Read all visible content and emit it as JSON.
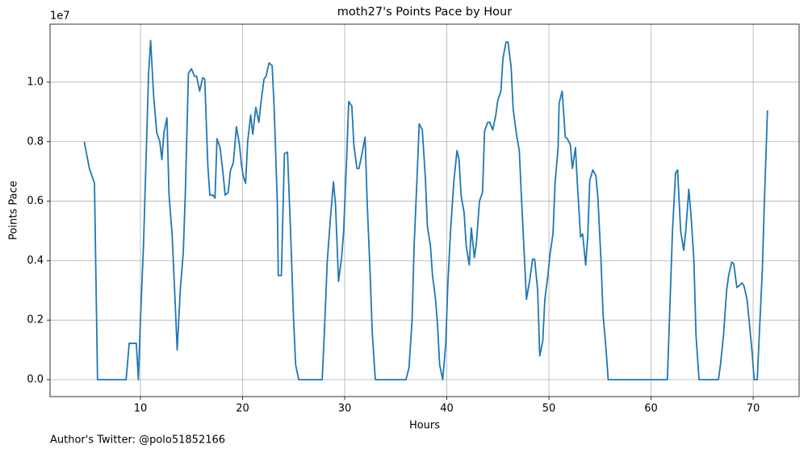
{
  "chart_data": {
    "type": "line",
    "title": "moth27's Points Pace by Hour",
    "xlabel": "Hours",
    "ylabel": "Points Pace",
    "y_offset_label": "1e7",
    "annotation": "Author's Twitter: @polo51852166",
    "grid": true,
    "xlim": [
      1.15,
      74.5
    ],
    "ylim": [
      -570000,
      11950000
    ],
    "xticks": [
      10,
      20,
      30,
      40,
      50,
      60,
      70
    ],
    "yticks": [
      {
        "value": 0,
        "label": "0.0"
      },
      {
        "value": 2000000,
        "label": "0.2"
      },
      {
        "value": 4000000,
        "label": "0.4"
      },
      {
        "value": 6000000,
        "label": "0.6"
      },
      {
        "value": 8000000,
        "label": "0.8"
      },
      {
        "value": 10000000,
        "label": "1.0"
      }
    ],
    "series": [
      {
        "color": "#1f77b4",
        "x": [
          4.5,
          5.0,
          5.5,
          5.8,
          8.6,
          8.9,
          9.6,
          9.8,
          10.0,
          10.3,
          10.8,
          11.0,
          11.3,
          11.6,
          11.9,
          12.1,
          12.3,
          12.6,
          12.8,
          13.1,
          13.4,
          13.6,
          13.9,
          14.2,
          14.4,
          14.7,
          15.0,
          15.3,
          15.5,
          15.8,
          16.1,
          16.3,
          16.6,
          16.8,
          17.1,
          17.3,
          17.5,
          17.8,
          18.1,
          18.3,
          18.6,
          18.8,
          19.1,
          19.4,
          19.7,
          19.9,
          20.1,
          20.3,
          20.5,
          20.8,
          21.0,
          21.3,
          21.6,
          21.8,
          22.1,
          22.3,
          22.6,
          22.9,
          23.1,
          23.4,
          23.5,
          23.8,
          24.1,
          24.4,
          24.7,
          25.0,
          25.2,
          25.5,
          27.8,
          28.0,
          28.3,
          28.6,
          28.9,
          29.1,
          29.4,
          29.7,
          29.9,
          30.2,
          30.4,
          30.7,
          30.9,
          31.2,
          31.4,
          31.7,
          32.0,
          32.2,
          32.5,
          32.7,
          33.0,
          36.0,
          36.3,
          36.6,
          36.8,
          37.1,
          37.3,
          37.6,
          37.9,
          38.1,
          38.4,
          38.6,
          38.9,
          39.1,
          39.3,
          39.6,
          39.9,
          40.1,
          40.4,
          40.7,
          41.0,
          41.2,
          41.4,
          41.7,
          41.9,
          42.2,
          42.4,
          42.7,
          42.9,
          43.2,
          43.5,
          43.7,
          44.0,
          44.2,
          44.5,
          44.8,
          45.0,
          45.3,
          45.5,
          45.8,
          46.0,
          46.3,
          46.5,
          46.8,
          47.1,
          47.3,
          47.6,
          47.8,
          48.1,
          48.4,
          48.6,
          48.9,
          49.1,
          49.4,
          49.6,
          49.9,
          50.1,
          50.4,
          50.6,
          50.9,
          51.0,
          51.3,
          51.6,
          51.8,
          52.1,
          52.3,
          52.6,
          52.8,
          53.1,
          53.3,
          53.6,
          53.8,
          54.0,
          54.3,
          54.6,
          54.8,
          55.1,
          55.3,
          55.6,
          55.8,
          61.6,
          61.9,
          62.1,
          62.4,
          62.6,
          62.9,
          63.2,
          63.4,
          63.7,
          63.9,
          64.2,
          64.4,
          64.7,
          66.6,
          66.8,
          67.1,
          67.4,
          67.6,
          67.9,
          68.1,
          68.4,
          68.6,
          68.9,
          69.1,
          69.4,
          69.6,
          69.9,
          70.1,
          70.4,
          70.6,
          70.9,
          71.1,
          71.4
        ],
        "values": [
          8000000,
          7100000,
          6600000,
          0,
          0,
          1220000,
          1220000,
          0,
          2000000,
          4500000,
          10300000,
          11400000,
          9500000,
          8300000,
          8000000,
          7400000,
          8300000,
          8800000,
          6200000,
          4900000,
          2600000,
          1000000,
          3000000,
          4300000,
          6300000,
          10300000,
          10450000,
          10200000,
          10200000,
          9700000,
          10150000,
          10100000,
          7200000,
          6200000,
          6200000,
          6100000,
          8100000,
          7800000,
          6900000,
          6200000,
          6300000,
          7000000,
          7300000,
          8500000,
          7900000,
          7200000,
          6800000,
          6600000,
          8000000,
          8900000,
          8250000,
          9150000,
          8650000,
          9300000,
          10100000,
          10200000,
          10650000,
          10550000,
          9100000,
          6000000,
          3500000,
          3500000,
          7600000,
          7650000,
          5000000,
          2000000,
          500000,
          0,
          0,
          1500000,
          4000000,
          5400000,
          6650000,
          5900000,
          3300000,
          4100000,
          5000000,
          7500000,
          9350000,
          9200000,
          7900000,
          7100000,
          7100000,
          7600000,
          8150000,
          6000000,
          3500000,
          1600000,
          0,
          0,
          400000,
          2000000,
          4500000,
          6900000,
          8600000,
          8400000,
          6800000,
          5150000,
          4500000,
          3500000,
          2700000,
          1800000,
          500000,
          0,
          1200000,
          3200000,
          5200000,
          6700000,
          7700000,
          7400000,
          6200000,
          5600000,
          4500000,
          3850000,
          5100000,
          4100000,
          4600000,
          6000000,
          6300000,
          8350000,
          8650000,
          8650000,
          8400000,
          8900000,
          9400000,
          9700000,
          10800000,
          11350000,
          11350000,
          10500000,
          9100000,
          8300000,
          7700000,
          6200000,
          4100000,
          2700000,
          3300000,
          4050000,
          4050000,
          3000000,
          800000,
          1300000,
          2700000,
          3500000,
          4200000,
          4900000,
          6600000,
          7800000,
          9300000,
          9700000,
          8150000,
          8100000,
          7900000,
          7100000,
          7800000,
          6500000,
          4800000,
          4900000,
          3850000,
          4800000,
          6700000,
          7050000,
          6850000,
          6100000,
          4000000,
          2200000,
          1000000,
          0,
          0,
          3000000,
          5000000,
          6950000,
          7050000,
          5000000,
          4350000,
          5000000,
          6400000,
          5600000,
          4000000,
          1500000,
          0,
          0,
          500000,
          1500000,
          3000000,
          3500000,
          3950000,
          3900000,
          3100000,
          3150000,
          3250000,
          3150000,
          2700000,
          2000000,
          900000,
          0,
          0,
          1500000,
          3700000,
          6000000,
          9050000
        ]
      }
    ]
  }
}
